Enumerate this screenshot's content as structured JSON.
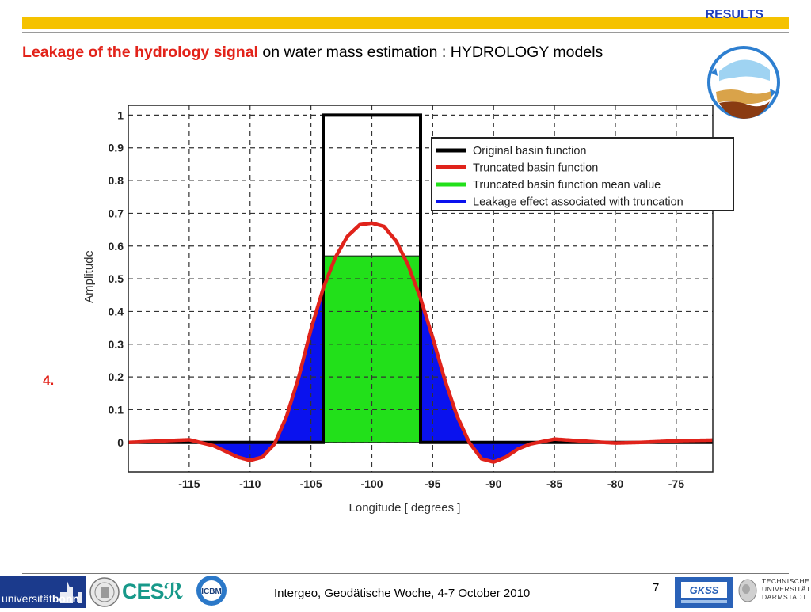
{
  "header": {
    "section": "RESULTS",
    "title_highlight": "Leakage of the hydrology signal",
    "title_rest": " on water mass estimation : HYDROLOGY models"
  },
  "step_number": "4.",
  "footer": {
    "text": "Intergeo, Geodätische Woche, 4-7 October 2010",
    "page": "7",
    "uni_prefix": "universität",
    "uni_bold": "bonn",
    "cesr": "CES",
    "icbm": "ICBM",
    "gkss": "GKSS",
    "tud_lines": [
      "TECHNISCHE",
      "UNIVERSITÄT",
      "DARMSTADT"
    ]
  },
  "colors": {
    "accent_bar": "#f5c200",
    "title_red": "#e2231a",
    "section_blue": "#1f3fbf",
    "original": "#000000",
    "truncated": "#e0231b",
    "mean": "#22e01a",
    "leakage": "#0a12ee"
  },
  "chart_data": {
    "type": "line",
    "xlabel": "Longitude [ degrees ]",
    "ylabel": "Amplitude",
    "xlim": [
      -120,
      -72
    ],
    "ylim": [
      -0.09,
      1.03
    ],
    "xticks": [
      -115,
      -110,
      -105,
      -100,
      -95,
      -90,
      -85,
      -80,
      -75
    ],
    "xtick_labels": [
      "-115",
      "-110",
      "-105",
      "-100",
      "-95",
      "-90",
      "-85",
      "-80",
      "-75"
    ],
    "yticks": [
      0,
      0.1,
      0.2,
      0.3,
      0.4,
      0.5,
      0.6,
      0.7,
      0.8,
      0.9,
      1
    ],
    "ytick_labels": [
      "0",
      "0.1",
      "0.2",
      "0.3",
      "0.4",
      "0.5",
      "0.6",
      "0.7",
      "0.8",
      "0.9",
      "1"
    ],
    "grid": true,
    "legend_position": "top-right",
    "series": [
      {
        "name": "Original basin function",
        "kind": "step",
        "x": [
          -120,
          -104,
          -104,
          -96,
          -96,
          -72
        ],
        "y": [
          0,
          0,
          1,
          1,
          0,
          0
        ]
      },
      {
        "name": "Truncated basin function",
        "kind": "line",
        "x": [
          -120,
          -117,
          -115,
          -113,
          -111,
          -110,
          -109,
          -108,
          -107,
          -106,
          -105,
          -104,
          -103,
          -102,
          -101,
          -100,
          -99,
          -98,
          -97,
          -96,
          -95,
          -94,
          -93,
          -92,
          -91,
          -90,
          -89,
          -88,
          -87,
          -85,
          -83,
          -80,
          -78,
          -75,
          -72
        ],
        "y": [
          0,
          0.005,
          0.008,
          -0.01,
          -0.045,
          -0.055,
          -0.045,
          -0.005,
          0.08,
          0.2,
          0.345,
          0.47,
          0.565,
          0.63,
          0.665,
          0.67,
          0.66,
          0.615,
          0.54,
          0.44,
          0.32,
          0.19,
          0.08,
          0.0,
          -0.05,
          -0.06,
          -0.045,
          -0.02,
          -0.005,
          0.01,
          0.005,
          -0.002,
          0.0,
          0.005,
          0.007
        ]
      },
      {
        "name": "Truncated basin function mean value",
        "kind": "box",
        "x": [
          -104,
          -96
        ],
        "y": [
          0.57
        ]
      },
      {
        "name": "Leakage effect associated with truncation",
        "kind": "fill",
        "x": [],
        "y": []
      }
    ]
  }
}
